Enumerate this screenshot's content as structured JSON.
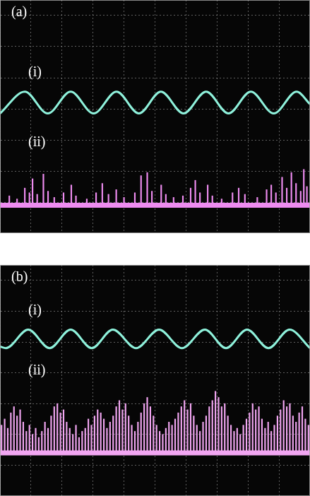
{
  "chart_data": [
    {
      "type": "line",
      "title": "(a)",
      "xlim": [
        0,
        10
      ],
      "ylim": [
        0,
        7.5
      ],
      "xticks": [
        0,
        1,
        2,
        3,
        4,
        5,
        6,
        7,
        8,
        9,
        10
      ],
      "yticks": [
        0,
        1,
        2,
        3,
        4,
        5,
        6,
        7
      ],
      "grid": true,
      "tick_labels": false,
      "series": [
        {
          "name": "(i)",
          "type": "line",
          "color": "#8ff2dc",
          "x": [
            0,
            0.8,
            1.54,
            2.28,
            3.02,
            3.76,
            4.48,
            5.19,
            5.92,
            6.65,
            7.37,
            8.09,
            8.83,
            9.57,
            10
          ],
          "values": [
            3.85,
            4.55,
            3.85,
            4.55,
            3.85,
            4.55,
            3.85,
            4.55,
            3.85,
            4.55,
            3.85,
            4.55,
            3.85,
            4.55,
            4.15
          ]
        },
        {
          "name": "(ii)",
          "type": "bar",
          "color": "#ee8cf0",
          "baseline": 0.9,
          "x": [
            0.3,
            0.55,
            0.8,
            0.95,
            1.05,
            1.2,
            1.4,
            1.55,
            1.75,
            2.05,
            2.3,
            2.45,
            2.8,
            3.1,
            3.3,
            3.5,
            3.75,
            4.0,
            4.35,
            4.55,
            4.75,
            4.9,
            5.2,
            5.35,
            5.6,
            5.9,
            6.15,
            6.3,
            6.45,
            6.7,
            6.85,
            7.15,
            7.5,
            7.7,
            7.9,
            8.3,
            8.6,
            8.75,
            8.9,
            9.1,
            9.25,
            9.4,
            9.55,
            9.7,
            9.8,
            9.9
          ],
          "values": [
            1.2,
            1.1,
            1.45,
            1.3,
            1.75,
            1.25,
            1.9,
            1.35,
            1.15,
            1.3,
            1.55,
            1.2,
            1.1,
            1.3,
            1.6,
            1.25,
            1.4,
            1.15,
            1.3,
            1.85,
            1.95,
            1.35,
            1.55,
            1.25,
            1.15,
            1.2,
            1.45,
            1.7,
            1.3,
            1.55,
            1.2,
            1.1,
            1.3,
            1.45,
            1.25,
            1.15,
            1.4,
            1.55,
            1.3,
            1.8,
            1.45,
            1.95,
            1.6,
            1.35,
            2.05,
            1.5
          ]
        }
      ]
    },
    {
      "type": "line",
      "title": "(b)",
      "xlim": [
        0,
        10
      ],
      "ylim": [
        0,
        7.5
      ],
      "xticks": [
        0,
        1,
        2,
        3,
        4,
        5,
        6,
        7,
        8,
        9,
        10
      ],
      "yticks": [
        0,
        1,
        2,
        3,
        4,
        5,
        6,
        7
      ],
      "grid": true,
      "tick_labels": false,
      "series": [
        {
          "name": "(i)",
          "type": "line",
          "color": "#8ff2dc",
          "x": [
            0,
            0.19,
            0.91,
            1.6,
            2.28,
            2.96,
            3.64,
            4.39,
            5.13,
            5.87,
            6.61,
            7.29,
            7.97,
            8.66,
            9.34,
            10
          ],
          "values": [
            4.85,
            4.8,
            5.4,
            4.8,
            5.4,
            4.8,
            5.4,
            4.8,
            5.4,
            4.8,
            5.4,
            4.8,
            5.4,
            4.8,
            5.4,
            4.8
          ]
        },
        {
          "name": "(ii)",
          "type": "bar",
          "color": "#f2a6f2",
          "baseline": 1.4,
          "x": [
            0.05,
            0.15,
            0.25,
            0.35,
            0.45,
            0.55,
            0.65,
            0.75,
            0.85,
            0.95,
            1.05,
            1.15,
            1.25,
            1.35,
            1.45,
            1.55,
            1.65,
            1.75,
            1.85,
            1.95,
            2.05,
            2.15,
            2.25,
            2.35,
            2.45,
            2.55,
            2.65,
            2.75,
            2.85,
            2.95,
            3.05,
            3.15,
            3.25,
            3.35,
            3.45,
            3.55,
            3.65,
            3.75,
            3.85,
            3.95,
            4.05,
            4.15,
            4.25,
            4.35,
            4.45,
            4.55,
            4.65,
            4.75,
            4.85,
            4.95,
            5.05,
            5.15,
            5.25,
            5.35,
            5.45,
            5.55,
            5.65,
            5.75,
            5.85,
            5.95,
            6.05,
            6.15,
            6.25,
            6.35,
            6.45,
            6.55,
            6.65,
            6.75,
            6.85,
            6.95,
            7.05,
            7.15,
            7.25,
            7.35,
            7.45,
            7.55,
            7.65,
            7.75,
            7.85,
            7.95,
            8.05,
            8.15,
            8.25,
            8.35,
            8.45,
            8.55,
            8.65,
            8.75,
            8.85,
            8.95,
            9.05,
            9.15,
            9.25,
            9.35,
            9.45,
            9.55,
            9.65,
            9.75,
            9.85,
            9.95
          ],
          "values": [
            2.3,
            2.5,
            2.2,
            2.7,
            2.9,
            2.6,
            2.8,
            2.4,
            2.1,
            2.3,
            2.0,
            2.2,
            1.9,
            2.1,
            2.4,
            2.2,
            2.6,
            2.9,
            3.0,
            2.7,
            2.8,
            2.4,
            2.2,
            2.0,
            2.3,
            1.9,
            2.1,
            2.2,
            2.5,
            2.3,
            2.6,
            2.8,
            2.7,
            2.5,
            2.2,
            2.4,
            2.6,
            2.9,
            3.1,
            2.8,
            3.0,
            2.6,
            2.3,
            2.1,
            2.4,
            2.7,
            3.0,
            3.2,
            2.9,
            2.6,
            2.3,
            2.1,
            2.0,
            2.2,
            2.4,
            2.3,
            2.5,
            2.7,
            2.9,
            3.1,
            2.8,
            3.0,
            2.6,
            2.3,
            2.1,
            2.4,
            2.6,
            2.9,
            3.1,
            3.4,
            3.2,
            2.9,
            3.0,
            2.6,
            2.3,
            2.1,
            2.2,
            2.0,
            2.3,
            2.5,
            2.7,
            3.0,
            2.8,
            2.9,
            2.5,
            2.2,
            2.4,
            2.1,
            2.3,
            2.6,
            2.8,
            3.1,
            2.9,
            3.0,
            2.6,
            2.4,
            2.7,
            2.9,
            2.5,
            2.3
          ]
        }
      ]
    }
  ]
}
